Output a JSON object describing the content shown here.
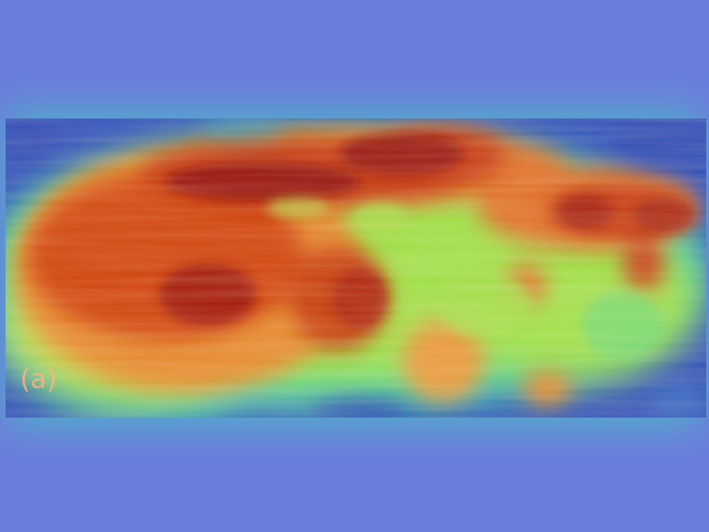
{
  "figure": {
    "panel_label": "(a)",
    "colors": {
      "background": "#6a7ddb",
      "low": "#2f4bb5",
      "mid_low": "#38d8b8",
      "mid": "#9fe04a",
      "mid_high": "#f2a23a",
      "high": "#d0420f",
      "peak": "#8e1208"
    },
    "colormap": "jet"
  }
}
